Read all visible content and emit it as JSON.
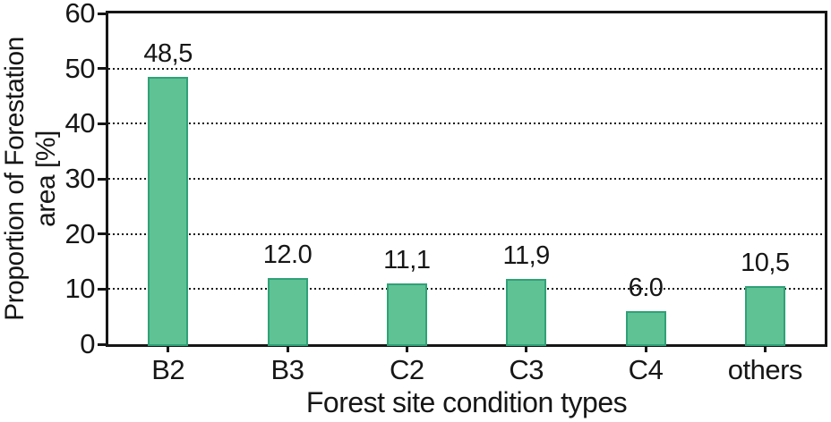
{
  "chart_data": {
    "type": "bar",
    "title": "",
    "categories": [
      "B2",
      "B3",
      "C2",
      "C3",
      "C4",
      "others"
    ],
    "values": [
      48.5,
      12.0,
      11.1,
      11.9,
      6.0,
      10.5
    ],
    "value_labels": [
      "48,5",
      "12.0",
      "11,1",
      "11,9",
      "6.0",
      "10,5"
    ],
    "xlabel": "Forest site condition types",
    "ylabel_line1": "Proportion of Forestation",
    "ylabel_line2": "area [%]",
    "ylim": [
      0,
      60
    ],
    "ytick_interval": 10,
    "ytick_labels": [
      "0",
      "10",
      "20",
      "30",
      "40",
      "50",
      "60"
    ],
    "grid": "horizontal-dotted",
    "legend": "none",
    "colors": {
      "bar_fill": "#5ec295",
      "bar_border": "#30a177",
      "axis": "#161616",
      "background": "#ffffff"
    }
  }
}
